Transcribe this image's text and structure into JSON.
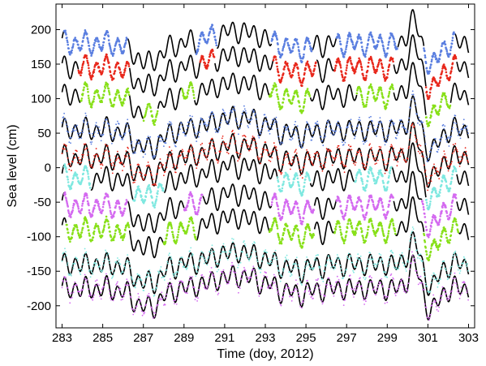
{
  "chart_data": {
    "type": "scatter",
    "title": "",
    "xlabel": "Time (doy, 2012)",
    "ylabel": "Sea level (cm)",
    "xlim": [
      282.7,
      303.3
    ],
    "ylim": [
      -232,
      237
    ],
    "xticks": [
      283,
      285,
      287,
      289,
      291,
      293,
      295,
      297,
      299,
      301,
      303
    ],
    "yticks": [
      -200,
      -150,
      -100,
      -50,
      0,
      50,
      100,
      150,
      200
    ],
    "grid": false,
    "legend": "none",
    "series_description": "Ten vertically offset sea-level time series; each is a black continuous reference trace overlaid with colored observation points that appear in discontinuous stretches.",
    "series": [
      {
        "offset": 180,
        "point_color": "#5b7fe0"
      },
      {
        "offset": 145,
        "point_color": "#e8281c"
      },
      {
        "offset": 105,
        "point_color": "#88e01a"
      },
      {
        "offset": 55,
        "point_color": "#5b7fe0"
      },
      {
        "offset": 15,
        "point_color": "#e8281c"
      },
      {
        "offset": -15,
        "point_color": "#7fe8e0"
      },
      {
        "offset": -55,
        "point_color": "#d46af0"
      },
      {
        "offset": -90,
        "point_color": "#88e01a"
      },
      {
        "offset": -140,
        "point_color": "#7fe8e0"
      },
      {
        "offset": -175,
        "point_color": "#d46af0"
      }
    ],
    "reference_color": "#000000"
  }
}
